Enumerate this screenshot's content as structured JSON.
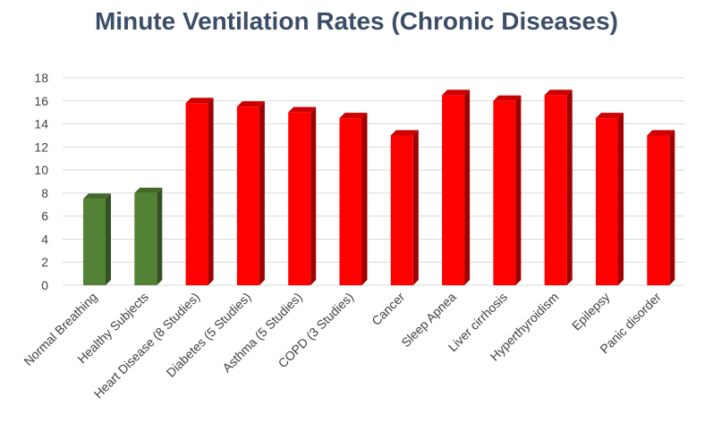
{
  "chart_data": {
    "type": "bar",
    "title": "Minute Ventilation Rates (Chronic Diseases)",
    "xlabel": "",
    "ylabel": "",
    "ylim": [
      0,
      18
    ],
    "yticks": [
      0,
      2,
      4,
      6,
      8,
      10,
      12,
      14,
      16,
      18
    ],
    "grid": true,
    "legend": "none",
    "categories": [
      "Normal Breathing",
      "Healthy Subjects",
      "Heart Disease (8 Studies)",
      "Diabetes (5 Studies)",
      "Asthma (5 Studies)",
      "COPD (3 Studies)",
      "Cancer",
      "Sleep Apnea",
      "Liver cirrhosis",
      "Hyperthyroidism",
      "Epilepsy",
      "Panic disorder"
    ],
    "values": [
      7.5,
      8,
      15.8,
      15.5,
      15,
      14.5,
      13,
      16.5,
      16,
      16.5,
      14.5,
      13
    ],
    "bar_colors": [
      "#548235",
      "#548235",
      "#ff0000",
      "#ff0000",
      "#ff0000",
      "#ff0000",
      "#ff0000",
      "#ff0000",
      "#ff0000",
      "#ff0000",
      "#ff0000",
      "#ff0000"
    ]
  }
}
